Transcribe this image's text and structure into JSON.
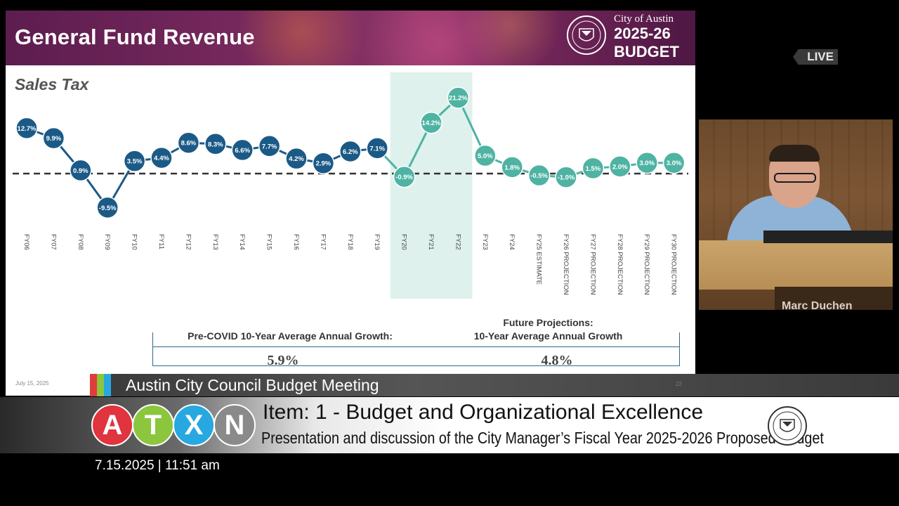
{
  "slide": {
    "title": "General Fund Revenue",
    "brand_city": "City of Austin",
    "brand_year": "2025-26",
    "brand_budget": "BUDGET",
    "subtitle": "Sales Tax",
    "date": "July 15, 2025",
    "page": "22",
    "avg_left_label": "Pre-COVID 10-Year Average Annual Growth:",
    "avg_left_value": "5.9%",
    "avg_right_label_line1": "Future Projections:",
    "avg_right_label_line2": "10-Year Average Annual Growth",
    "avg_right_value": "4.8%"
  },
  "chart_data": {
    "type": "line",
    "categories": [
      "FY06",
      "FY07",
      "FY08",
      "FY09",
      "FY10",
      "FY11",
      "FY12",
      "FY13",
      "FY14",
      "FY15",
      "FY16",
      "FY17",
      "FY18",
      "FY19",
      "FY20",
      "FY21",
      "FY22",
      "FY23",
      "FY24",
      "FY25 ESTIMATE",
      "FY26 PROJECTION",
      "FY27 PROJECTION",
      "FY28 PROJECTION",
      "FY29 PROJECTION",
      "FY30 PROJECTION"
    ],
    "values": [
      12.7,
      9.9,
      0.9,
      -9.5,
      3.5,
      4.4,
      8.6,
      8.3,
      6.6,
      7.7,
      4.2,
      2.9,
      6.2,
      7.1,
      -0.9,
      14.2,
      21.2,
      5.0,
      1.8,
      -0.5,
      -1.0,
      1.5,
      2.0,
      3.0,
      3.0
    ],
    "data_labels": [
      "12.7%",
      "9.9%",
      "0.9%",
      "-9.5%",
      "3.5%",
      "4.4%",
      "8.6%",
      "8.3%",
      "6.6%",
      "7.7%",
      "4.2%",
      "2.9%",
      "6.2%",
      "7.1%",
      "-0.9%",
      "14.2%",
      "21.2%",
      "5.0%",
      "1.8%",
      "-0.5%",
      "-1.0%",
      "1.5%",
      "2.0%",
      "3.0%",
      "3.0%"
    ],
    "highlight_range": [
      "FY20",
      "FY22"
    ],
    "colors": {
      "historical": "#1b5a86",
      "covid_and_future": "#4fb3a3",
      "highlight_band": "#dff1ec",
      "baseline": "#333333"
    },
    "baseline_value": 0,
    "ylim": [
      -11,
      23
    ]
  },
  "live_label": "LIVE",
  "camera": {
    "nameplate": "Marc Duchen"
  },
  "meeting_bar": {
    "title": "Austin City Council Budget Meeting",
    "stripe_colors": [
      "#e03c3c",
      "#8cc63f",
      "#2aa7df"
    ]
  },
  "item": {
    "title": "Item: 1 - Budget and Organizational Excellence",
    "description": "Presentation and discussion of the City Manager’s Fiscal Year 2025-2026 Proposed Budget"
  },
  "atxn_logo": {
    "letters": [
      "A",
      "T",
      "X",
      "N"
    ],
    "colors": [
      "#e0343e",
      "#8cc63f",
      "#27a8e0",
      "#8a8a8a"
    ]
  },
  "timestamp": "7.15.2025 | 11:51 am"
}
